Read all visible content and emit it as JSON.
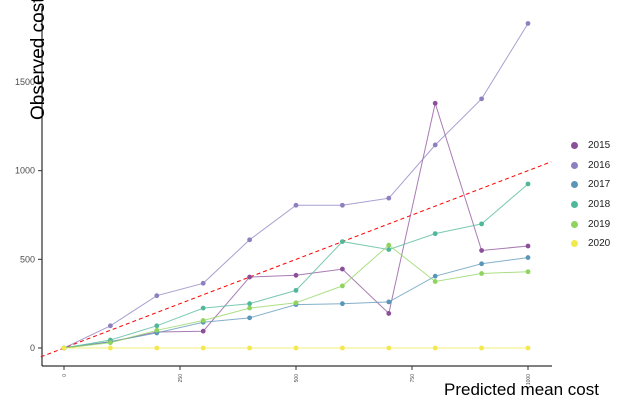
{
  "chart_data": {
    "type": "line",
    "xlabel": "Predicted mean cost",
    "ylabel": "Observed cost",
    "xlim": [
      0,
      1000
    ],
    "ylim": [
      -50,
      1900
    ],
    "x_ticks": [
      0,
      250,
      500,
      750,
      1000
    ],
    "y_ticks": [
      0,
      500,
      1000,
      1500
    ],
    "grid": false,
    "legend_position": "right",
    "x": [
      0,
      100,
      200,
      300,
      400,
      500,
      600,
      700,
      800,
      900,
      1000
    ],
    "series": [
      {
        "name": "2015",
        "color": "#8b4f9a",
        "values": [
          0,
          35,
          90,
          95,
          400,
          410,
          445,
          195,
          1380,
          550,
          575
        ]
      },
      {
        "name": "2016",
        "color": "#8e7fbf",
        "values": [
          0,
          125,
          295,
          365,
          610,
          805,
          805,
          845,
          1145,
          1405,
          1830
        ]
      },
      {
        "name": "2017",
        "color": "#5b96b8",
        "values": [
          0,
          35,
          85,
          145,
          170,
          245,
          250,
          260,
          405,
          475,
          510
        ]
      },
      {
        "name": "2018",
        "color": "#4fb89a",
        "values": [
          0,
          45,
          125,
          225,
          250,
          325,
          600,
          555,
          645,
          700,
          925
        ]
      },
      {
        "name": "2019",
        "color": "#8fd45e",
        "values": [
          0,
          30,
          100,
          155,
          225,
          255,
          350,
          580,
          375,
          420,
          430
        ]
      },
      {
        "name": "2020",
        "color": "#f2e94e",
        "values": [
          0,
          0,
          0,
          0,
          0,
          0,
          0,
          0,
          0,
          0,
          0
        ]
      }
    ],
    "reference_line": {
      "type": "identity",
      "color": "#ff0000",
      "style": "dashed"
    }
  }
}
